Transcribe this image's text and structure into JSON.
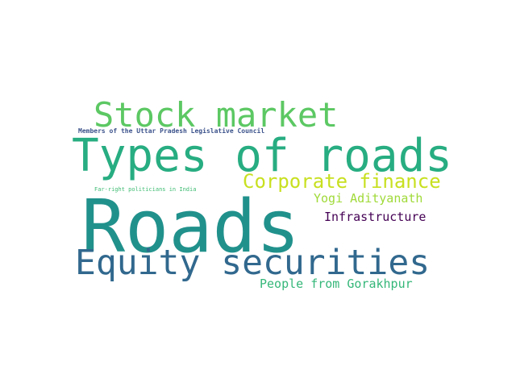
{
  "words": {
    "stock_market": {
      "text": "Stock market",
      "color": "#5cc863"
    },
    "members": {
      "text": "Members of the Uttar Pradesh Legislative Council",
      "color": "#3b528b"
    },
    "types_of_roads": {
      "text": "Types of roads",
      "color": "#27ad81"
    },
    "corporate_finance": {
      "text": "Corporate finance",
      "color": "#c8e020"
    },
    "far_right": {
      "text": "Far-right politicians in India",
      "color": "#3fbc73"
    },
    "yogi": {
      "text": "Yogi Adityanath",
      "color": "#a0da39"
    },
    "roads": {
      "text": "Roads",
      "color": "#21918c"
    },
    "infrastructure": {
      "text": "Infrastructure",
      "color": "#440154"
    },
    "equity": {
      "text": "Equity securities",
      "color": "#31688e"
    },
    "people": {
      "text": "People from Gorakhpur",
      "color": "#35b779"
    }
  }
}
